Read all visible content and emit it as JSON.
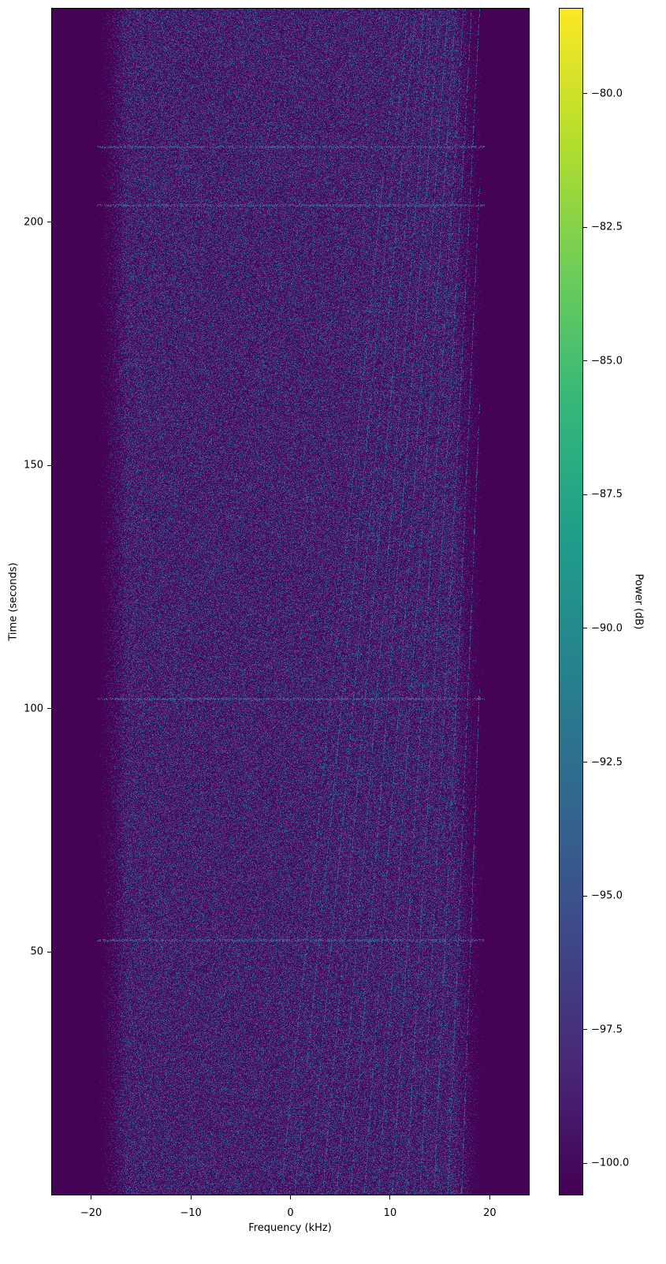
{
  "chart_data": {
    "type": "heatmap",
    "title": "",
    "xlabel": "Frequency (kHz)",
    "ylabel": "Time (seconds)",
    "xlim": [
      -24,
      24
    ],
    "ylim": [
      0,
      244
    ],
    "xticks": [
      -20,
      -10,
      0,
      10,
      20
    ],
    "xtick_labels": [
      "−20",
      "−10",
      "0",
      "10",
      "20"
    ],
    "yticks": [
      50,
      100,
      150,
      200
    ],
    "ytick_labels": [
      "50",
      "100",
      "150",
      "200"
    ],
    "grid": false,
    "colormap": "viridis",
    "colorbar": {
      "label": "Power (dB)",
      "range": [
        -100.6,
        -78.4
      ],
      "ticks": [
        -100.0,
        -97.5,
        -95.0,
        -92.5,
        -90.0,
        -87.5,
        -85.0,
        -82.5,
        -80.0
      ],
      "tick_labels": [
        "−100.0",
        "−97.5",
        "−95.0",
        "−92.5",
        "−90.0",
        "−87.5",
        "−85.0",
        "−82.5",
        "−80.0"
      ]
    },
    "noise_floor_db": -100.5,
    "signal_band_khz": [
      -19,
      19
    ],
    "signal_level_db": [
      -100.5,
      -94
    ],
    "horizontal_features_time_s": [
      52.4,
      102,
      203.6,
      215.6
    ],
    "drifting_tones": {
      "start_khz": [
        -1,
        18
      ],
      "end_khz": [
        11,
        18
      ],
      "time_range_s": [
        0,
        244
      ]
    }
  }
}
